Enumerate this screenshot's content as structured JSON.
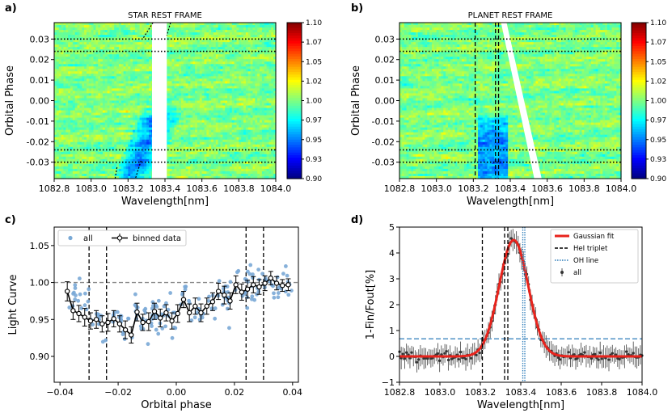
{
  "chart_data": [
    {
      "id": "a",
      "type": "heatmap",
      "panel_label": "a)",
      "title": "STAR REST FRAME",
      "xlabel": "Wavelength[nm]",
      "ylabel": "Orbital Phase",
      "xlim": [
        1082.8,
        1084.0
      ],
      "ylim": [
        -0.038,
        0.038
      ],
      "x_ticks": [
        "1082.8",
        "1083.0",
        "1083.2",
        "1083.4",
        "1083.6",
        "1083.8",
        "1084.0"
      ],
      "x_tick_values": [
        1082.8,
        1083.0,
        1083.2,
        1083.4,
        1083.6,
        1083.8,
        1084.0
      ],
      "y_ticks": [
        "0.03",
        "0.02",
        "0.01",
        "0.00",
        "-0.01",
        "-0.02",
        "-0.03"
      ],
      "y_tick_values": [
        0.03,
        0.02,
        0.01,
        0.0,
        -0.01,
        -0.02,
        -0.03
      ],
      "colorbar": {
        "range": [
          0.9,
          1.1
        ],
        "ticks": [
          "1.10",
          "1.07",
          "1.05",
          "1.02",
          "1.00",
          "0.97",
          "0.95",
          "0.93",
          "0.90"
        ],
        "tick_values": [
          1.1,
          1.075,
          1.05,
          1.025,
          1.0,
          0.975,
          0.95,
          0.925,
          0.9
        ]
      },
      "dotted_lines_phase": [
        0.03,
        0.024,
        -0.024,
        -0.03
      ],
      "masked_band_nm": [
        1083.33,
        1083.41
      ],
      "absorption_trail": {
        "phase_range": [
          -0.038,
          0.0
        ],
        "nm_range": [
          1083.14,
          1083.32
        ]
      }
    },
    {
      "id": "b",
      "type": "heatmap",
      "panel_label": "b)",
      "title": "PLANET REST FRAME",
      "xlabel": "Wavelength[nm]",
      "ylabel": "Orbital Phase",
      "xlim": [
        1082.8,
        1084.0
      ],
      "ylim": [
        -0.038,
        0.038
      ],
      "x_ticks": [
        "1082.8",
        "1083.0",
        "1083.2",
        "1083.4",
        "1083.6",
        "1083.8",
        "1084.0"
      ],
      "x_tick_values": [
        1082.8,
        1083.0,
        1083.2,
        1083.4,
        1083.6,
        1083.8,
        1084.0
      ],
      "y_ticks": [
        "0.03",
        "0.02",
        "0.01",
        "0.00",
        "-0.01",
        "-0.02",
        "-0.03"
      ],
      "y_tick_values": [
        0.03,
        0.02,
        0.01,
        0.0,
        -0.01,
        -0.02,
        -0.03
      ],
      "colorbar": {
        "range": [
          0.9,
          1.1
        ],
        "ticks": [
          "1.10",
          "1.07",
          "1.05",
          "1.02",
          "1.00",
          "0.97",
          "0.95",
          "0.93",
          "0.90"
        ],
        "tick_values": [
          1.1,
          1.075,
          1.05,
          1.025,
          1.0,
          0.975,
          0.95,
          0.925,
          0.9
        ]
      },
      "dotted_lines_phase": [
        0.03,
        0.024,
        -0.024,
        -0.03
      ],
      "dashed_lines_nm": [
        1083.21,
        1083.32,
        1083.33
      ],
      "masked_trail": {
        "phase_top": 0.038,
        "nm_top": [
          1083.35,
          1083.38
        ],
        "phase_bottom": -0.038,
        "nm_bottom": [
          1083.53,
          1083.57
        ]
      },
      "absorption_band_nm": [
        1083.22,
        1083.34
      ]
    },
    {
      "id": "c",
      "type": "scatter",
      "panel_label": "c)",
      "xlabel": "Orbital phase",
      "ylabel": "Light Curve",
      "xlim": [
        -0.042,
        0.042
      ],
      "ylim": [
        0.865,
        1.075
      ],
      "x_ticks": [
        "−0.04",
        "−0.02",
        "0.00",
        "0.02",
        "0.04"
      ],
      "x_tick_values": [
        -0.04,
        -0.02,
        0.0,
        0.02,
        0.04
      ],
      "y_ticks": [
        "1.05",
        "1.00",
        "0.95",
        "0.90"
      ],
      "y_tick_values": [
        1.05,
        1.0,
        0.95,
        0.9
      ],
      "legend": {
        "placement": "top-left",
        "entries": [
          "all",
          "binned data"
        ]
      },
      "reference_line_y": 1.0,
      "vertical_dashed_x": [
        -0.03,
        -0.024,
        0.024,
        0.03
      ],
      "series": [
        {
          "name": "binned data",
          "x": [
            -0.0375,
            -0.0355,
            -0.0335,
            -0.0315,
            -0.0295,
            -0.0275,
            -0.0255,
            -0.0235,
            -0.0215,
            -0.0195,
            -0.0175,
            -0.0155,
            -0.0135,
            -0.0115,
            -0.0095,
            -0.0075,
            -0.0055,
            -0.0035,
            -0.0015,
            0.0005,
            0.0025,
            0.0045,
            0.0065,
            0.0085,
            0.0105,
            0.0125,
            0.0145,
            0.0165,
            0.0185,
            0.0205,
            0.0225,
            0.0245,
            0.0265,
            0.0285,
            0.0305,
            0.0325,
            0.0345,
            0.0365,
            0.0385
          ],
          "y": [
            0.988,
            0.962,
            0.958,
            0.953,
            0.948,
            0.95,
            0.944,
            0.946,
            0.951,
            0.944,
            0.936,
            0.929,
            0.96,
            0.946,
            0.947,
            0.961,
            0.952,
            0.959,
            0.948,
            0.958,
            0.977,
            0.959,
            0.968,
            0.959,
            0.968,
            0.974,
            0.988,
            0.983,
            0.975,
            0.997,
            0.987,
            0.991,
            0.997,
            0.994,
            0.999,
            1.006,
            0.999,
            0.996,
            0.997
          ],
          "error": [
            0.013,
            0.012,
            0.011,
            0.012,
            0.011,
            0.012,
            0.011,
            0.012,
            0.011,
            0.011,
            0.012,
            0.011,
            0.012,
            0.011,
            0.012,
            0.011,
            0.012,
            0.011,
            0.011,
            0.012,
            0.011,
            0.012,
            0.011,
            0.012,
            0.011,
            0.012,
            0.011,
            0.012,
            0.011,
            0.012,
            0.011,
            0.012,
            0.011,
            0.01,
            0.01,
            0.009,
            0.009,
            0.008,
            0.008
          ]
        }
      ]
    },
    {
      "id": "d",
      "type": "line",
      "panel_label": "d)",
      "xlabel": "Wavelength[nm]",
      "ylabel": "1-Fin/Fout[%]",
      "xlim": [
        1082.8,
        1084.0
      ],
      "ylim": [
        -1,
        5
      ],
      "x_ticks": [
        "1082.8",
        "1083.0",
        "1083.2",
        "1083.4",
        "1083.6",
        "1083.8",
        "1084.0"
      ],
      "x_tick_values": [
        1082.8,
        1083.0,
        1083.2,
        1083.4,
        1083.6,
        1083.8,
        1084.0
      ],
      "y_ticks": [
        "5",
        "4",
        "3",
        "2",
        "1",
        "0",
        "−1"
      ],
      "y_tick_values": [
        5,
        4,
        3,
        2,
        1,
        0,
        -1
      ],
      "legend": {
        "placement": "top-right",
        "entries": [
          "Gaussian fit",
          "HeI triplet",
          "OH line",
          "all"
        ]
      },
      "gaussian_fit": {
        "amplitude": 4.5,
        "center_nm": 1083.365,
        "sigma_nm": 0.072
      },
      "hei_triplet_nm": [
        1083.21,
        1083.32,
        1083.33
      ],
      "oh_line_nm": [
        1083.41,
        1083.42
      ],
      "threshold_y": 0.68
    }
  ]
}
